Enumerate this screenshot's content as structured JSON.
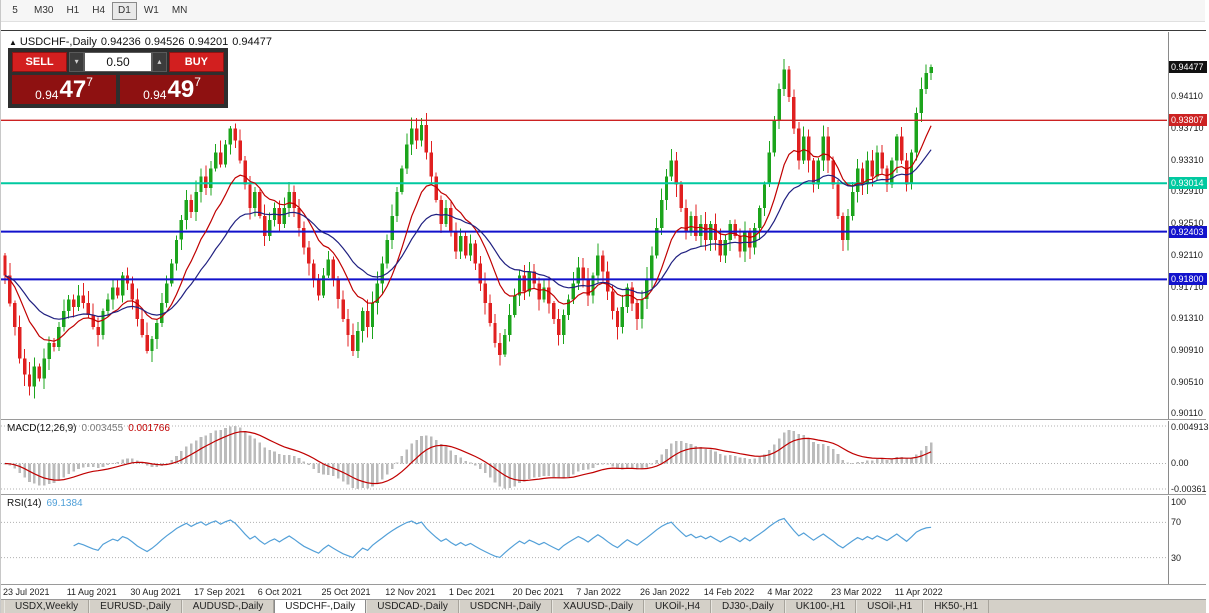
{
  "toolbar": {
    "timeframes": [
      {
        "label": "5",
        "active": false
      },
      {
        "label": "M30",
        "active": false
      },
      {
        "label": "H1",
        "active": false
      },
      {
        "label": "H4",
        "active": false
      },
      {
        "label": "D1",
        "active": true
      },
      {
        "label": "W1",
        "active": false
      },
      {
        "label": "MN",
        "active": false
      }
    ]
  },
  "icons": {
    "collapse": "▲",
    "spin_down": "▾",
    "spin_up": "▴"
  },
  "chart_header": {
    "symbol": "USDCHF-,Daily",
    "open": "0.94236",
    "high": "0.94526",
    "low": "0.94201",
    "close": "0.94477"
  },
  "trade_panel": {
    "sell_label": "SELL",
    "buy_label": "BUY",
    "volume": "0.50",
    "bid": {
      "main": "0.94",
      "big": "47",
      "sup": "7"
    },
    "ask": {
      "main": "0.94",
      "big": "49",
      "sup": "7"
    }
  },
  "price_axis": {
    "current": {
      "label": "0.94477",
      "value": 0.94477,
      "bg": "#111111"
    },
    "ticks": [
      {
        "label": "0.94110",
        "value": 0.9411
      },
      {
        "label": "0.93710",
        "value": 0.9371
      },
      {
        "label": "0.93310",
        "value": 0.9331
      },
      {
        "label": "0.92910",
        "value": 0.9291
      },
      {
        "label": "0.92510",
        "value": 0.9251
      },
      {
        "label": "0.92110",
        "value": 0.9211
      },
      {
        "label": "0.91710",
        "value": 0.9171
      },
      {
        "label": "0.91310",
        "value": 0.9131
      },
      {
        "label": "0.90910",
        "value": 0.9091
      },
      {
        "label": "0.90510",
        "value": 0.9051
      },
      {
        "label": "0.90110",
        "value": 0.9011
      }
    ]
  },
  "levels": [
    {
      "label": "0.93807",
      "value": 0.93807,
      "color": "#cc2222",
      "width": 1.4
    },
    {
      "label": "0.93014",
      "value": 0.93014,
      "color": "#00c9a0",
      "width": 2
    },
    {
      "label": "0.92403",
      "value": 0.92403,
      "color": "#1212cc",
      "width": 2
    },
    {
      "label": "0.91800",
      "value": 0.918,
      "color": "#1212cc",
      "width": 2
    }
  ],
  "indicators": {
    "macd": {
      "title": "MACD(12,26,9)",
      "value_main": "0.003455",
      "value_signal": "0.001766",
      "axis_max": "0.004913",
      "axis_zero": "0.00",
      "axis_min": "-0.00361"
    },
    "rsi": {
      "title": "RSI(14)",
      "value": "69.1384",
      "axis": [
        "100",
        "70",
        "30"
      ],
      "level_values": [
        100,
        70,
        30
      ],
      "dotted": [
        70,
        30
      ]
    }
  },
  "dates": [
    "23 Jul 2021",
    "11 Aug 2021",
    "30 Aug 2021",
    "17 Sep 2021",
    "6 Oct 2021",
    "25 Oct 2021",
    "12 Nov 2021",
    "1 Dec 2021",
    "20 Dec 2021",
    "7 Jan 2022",
    "26 Jan 2022",
    "14 Feb 2022",
    "4 Mar 2022",
    "23 Mar 2022",
    "11 Apr 2022"
  ],
  "tabs": [
    {
      "label": "USDX,Weekly",
      "active": false
    },
    {
      "label": "EURUSD-,Daily",
      "active": false
    },
    {
      "label": "AUDUSD-,Daily",
      "active": false
    },
    {
      "label": "USDCHF-,Daily",
      "active": true
    },
    {
      "label": "USDCAD-,Daily",
      "active": false
    },
    {
      "label": "USDCNH-,Daily",
      "active": false
    },
    {
      "label": "XAUUSD-,Daily",
      "active": false
    },
    {
      "label": "UKOil-,H4",
      "active": false
    },
    {
      "label": "DJ30-,Daily",
      "active": false
    },
    {
      "label": "UK100-,H1",
      "active": false
    },
    {
      "label": "USOil-,H1",
      "active": false
    },
    {
      "label": "HK50-,H1",
      "active": false
    }
  ],
  "colors": {
    "candle_up": "#1ca41c",
    "candle_down": "#e02020",
    "ma_fast": "#c00000",
    "ma_slow": "#202080",
    "macd_hist": "#bbbbbb",
    "macd_signal": "#c00000",
    "rsi_line": "#53a0d8",
    "dotted": "#b0b0b0"
  },
  "chart_data": {
    "type": "candlestick",
    "symbol": "USDCHF-",
    "timeframe": "Daily",
    "last_ohlc": {
      "open": 0.94236,
      "high": 0.94526,
      "low": 0.94201,
      "close": 0.94477
    },
    "ylim": [
      0.9004,
      0.9492
    ],
    "first_open": 0.921,
    "label_step": 13,
    "ma_fast_period": 12,
    "ma_slow_period": 26,
    "macd_params": [
      12,
      26,
      9
    ],
    "rsi_period": 14,
    "closes": [
      0.9185,
      0.915,
      0.912,
      0.908,
      0.906,
      0.9045,
      0.907,
      0.9055,
      0.908,
      0.91,
      0.9095,
      0.912,
      0.914,
      0.9155,
      0.9145,
      0.916,
      0.915,
      0.9135,
      0.912,
      0.911,
      0.914,
      0.9155,
      0.917,
      0.916,
      0.9185,
      0.9175,
      0.9155,
      0.913,
      0.911,
      0.909,
      0.9105,
      0.9125,
      0.915,
      0.9175,
      0.92,
      0.923,
      0.9255,
      0.928,
      0.9265,
      0.929,
      0.931,
      0.9295,
      0.932,
      0.934,
      0.9325,
      0.935,
      0.937,
      0.9355,
      0.933,
      0.93,
      0.927,
      0.929,
      0.926,
      0.9235,
      0.9255,
      0.927,
      0.925,
      0.927,
      0.929,
      0.927,
      0.9245,
      0.922,
      0.92,
      0.918,
      0.916,
      0.9185,
      0.9205,
      0.918,
      0.9155,
      0.913,
      0.911,
      0.909,
      0.9115,
      0.914,
      0.912,
      0.915,
      0.9175,
      0.92,
      0.923,
      0.926,
      0.929,
      0.932,
      0.935,
      0.937,
      0.9355,
      0.9375,
      0.934,
      0.931,
      0.928,
      0.925,
      0.927,
      0.924,
      0.9215,
      0.9235,
      0.921,
      0.9225,
      0.92,
      0.9175,
      0.915,
      0.9125,
      0.91,
      0.9085,
      0.911,
      0.9135,
      0.916,
      0.9185,
      0.9165,
      0.919,
      0.9175,
      0.9155,
      0.917,
      0.915,
      0.913,
      0.911,
      0.9135,
      0.9155,
      0.9175,
      0.9195,
      0.918,
      0.916,
      0.9185,
      0.921,
      0.919,
      0.9165,
      0.914,
      0.912,
      0.9145,
      0.917,
      0.915,
      0.913,
      0.9155,
      0.918,
      0.921,
      0.9245,
      0.928,
      0.931,
      0.933,
      0.93,
      0.927,
      0.924,
      0.926,
      0.9235,
      0.925,
      0.923,
      0.925,
      0.923,
      0.921,
      0.923,
      0.925,
      0.9235,
      0.9215,
      0.924,
      0.922,
      0.9245,
      0.927,
      0.93,
      0.934,
      0.938,
      0.942,
      0.9445,
      0.941,
      0.937,
      0.933,
      0.936,
      0.933,
      0.93,
      0.933,
      0.936,
      0.933,
      0.93,
      0.926,
      0.923,
      0.926,
      0.929,
      0.932,
      0.93,
      0.933,
      0.931,
      0.934,
      0.932,
      0.93,
      0.933,
      0.936,
      0.933,
      0.93,
      0.934,
      0.939,
      0.942,
      0.944,
      0.94477
    ]
  }
}
